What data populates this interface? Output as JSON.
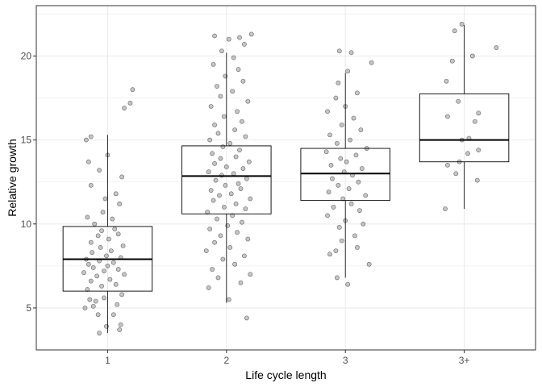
{
  "chart_data": {
    "type": "boxplot",
    "xlabel": "Life cycle length",
    "ylabel": "Relative growth",
    "categories": [
      "1",
      "2",
      "3",
      "3+"
    ],
    "ylim": [
      2.5,
      23.0
    ],
    "yticks": [
      5,
      10,
      15,
      20
    ],
    "grid": true,
    "colors": {
      "point_fill": "#7f7f7f",
      "point_stroke": "#333333",
      "box": "#000000",
      "panel_border": "#333333",
      "grid": "#ebebeb"
    },
    "boxes": [
      {
        "category": "1",
        "whisker_low": 3.5,
        "q1": 6.0,
        "median": 7.9,
        "q3": 9.85,
        "whisker_high": 15.3
      },
      {
        "category": "2",
        "whisker_low": 5.3,
        "q1": 10.6,
        "median": 12.85,
        "q3": 14.65,
        "whisker_high": 20.2
      },
      {
        "category": "3",
        "whisker_low": 6.8,
        "q1": 11.4,
        "median": 13.0,
        "q3": 14.5,
        "whisker_high": 19.0
      },
      {
        "category": "3+",
        "whisker_low": 10.9,
        "q1": 13.7,
        "median": 15.0,
        "q3": 17.75,
        "whisker_high": 21.85
      }
    ],
    "points": [
      {
        "category": "1",
        "x": 0.93,
        "y": 3.5
      },
      {
        "category": "1",
        "x": 1.1,
        "y": 3.7
      },
      {
        "category": "1",
        "x": 0.99,
        "y": 3.9
      },
      {
        "category": "1",
        "x": 1.11,
        "y": 4.0
      },
      {
        "category": "1",
        "x": 0.92,
        "y": 4.6
      },
      {
        "category": "1",
        "x": 1.05,
        "y": 4.6
      },
      {
        "category": "1",
        "x": 0.81,
        "y": 5.0
      },
      {
        "category": "1",
        "x": 0.88,
        "y": 5.1
      },
      {
        "category": "1",
        "x": 1.08,
        "y": 5.2
      },
      {
        "category": "1",
        "x": 0.9,
        "y": 5.4
      },
      {
        "category": "1",
        "x": 0.85,
        "y": 5.5
      },
      {
        "category": "1",
        "x": 0.97,
        "y": 5.6
      },
      {
        "category": "1",
        "x": 1.12,
        "y": 5.8
      },
      {
        "category": "1",
        "x": 0.83,
        "y": 6.1
      },
      {
        "category": "1",
        "x": 0.95,
        "y": 6.3
      },
      {
        "category": "1",
        "x": 1.07,
        "y": 6.4
      },
      {
        "category": "1",
        "x": 0.86,
        "y": 6.6
      },
      {
        "category": "1",
        "x": 1.02,
        "y": 6.7
      },
      {
        "category": "1",
        "x": 0.91,
        "y": 6.9
      },
      {
        "category": "1",
        "x": 1.14,
        "y": 7.0
      },
      {
        "category": "1",
        "x": 0.8,
        "y": 7.1
      },
      {
        "category": "1",
        "x": 0.97,
        "y": 7.2
      },
      {
        "category": "1",
        "x": 1.09,
        "y": 7.3
      },
      {
        "category": "1",
        "x": 0.88,
        "y": 7.4
      },
      {
        "category": "1",
        "x": 1.0,
        "y": 7.5
      },
      {
        "category": "1",
        "x": 0.84,
        "y": 7.6
      },
      {
        "category": "1",
        "x": 1.05,
        "y": 7.7
      },
      {
        "category": "1",
        "x": 0.93,
        "y": 7.8
      },
      {
        "category": "1",
        "x": 0.82,
        "y": 7.9
      },
      {
        "category": "1",
        "x": 1.11,
        "y": 8.0
      },
      {
        "category": "1",
        "x": 0.99,
        "y": 8.1
      },
      {
        "category": "1",
        "x": 0.87,
        "y": 8.3
      },
      {
        "category": "1",
        "x": 1.03,
        "y": 8.4
      },
      {
        "category": "1",
        "x": 0.94,
        "y": 8.6
      },
      {
        "category": "1",
        "x": 1.13,
        "y": 8.7
      },
      {
        "category": "1",
        "x": 0.86,
        "y": 8.9
      },
      {
        "category": "1",
        "x": 1.01,
        "y": 9.1
      },
      {
        "category": "1",
        "x": 0.92,
        "y": 9.3
      },
      {
        "category": "1",
        "x": 1.09,
        "y": 9.4
      },
      {
        "category": "1",
        "x": 0.95,
        "y": 9.6
      },
      {
        "category": "1",
        "x": 1.06,
        "y": 9.7
      },
      {
        "category": "1",
        "x": 0.89,
        "y": 10.0
      },
      {
        "category": "1",
        "x": 1.04,
        "y": 10.3
      },
      {
        "category": "1",
        "x": 0.96,
        "y": 10.7
      },
      {
        "category": "1",
        "x": 0.83,
        "y": 10.4
      },
      {
        "category": "1",
        "x": 1.1,
        "y": 11.2
      },
      {
        "category": "1",
        "x": 0.98,
        "y": 11.5
      },
      {
        "category": "1",
        "x": 1.07,
        "y": 11.8
      },
      {
        "category": "1",
        "x": 0.86,
        "y": 12.3
      },
      {
        "category": "1",
        "x": 1.12,
        "y": 12.8
      },
      {
        "category": "1",
        "x": 0.93,
        "y": 13.2
      },
      {
        "category": "1",
        "x": 0.84,
        "y": 13.7
      },
      {
        "category": "1",
        "x": 1.0,
        "y": 14.1
      },
      {
        "category": "1",
        "x": 0.82,
        "y": 15.0
      },
      {
        "category": "1",
        "x": 0.86,
        "y": 15.2
      },
      {
        "category": "1",
        "x": 1.14,
        "y": 16.9
      },
      {
        "category": "1",
        "x": 1.19,
        "y": 17.2
      },
      {
        "category": "1",
        "x": 1.21,
        "y": 18.0
      },
      {
        "category": "2",
        "x": 2.17,
        "y": 4.4
      },
      {
        "category": "2",
        "x": 2.02,
        "y": 5.5
      },
      {
        "category": "2",
        "x": 1.85,
        "y": 6.2
      },
      {
        "category": "2",
        "x": 2.12,
        "y": 6.5
      },
      {
        "category": "2",
        "x": 1.93,
        "y": 6.8
      },
      {
        "category": "2",
        "x": 2.2,
        "y": 7.0
      },
      {
        "category": "2",
        "x": 1.88,
        "y": 7.3
      },
      {
        "category": "2",
        "x": 2.07,
        "y": 7.6
      },
      {
        "category": "2",
        "x": 1.97,
        "y": 7.9
      },
      {
        "category": "2",
        "x": 2.15,
        "y": 8.1
      },
      {
        "category": "2",
        "x": 1.83,
        "y": 8.4
      },
      {
        "category": "2",
        "x": 2.03,
        "y": 8.6
      },
      {
        "category": "2",
        "x": 1.9,
        "y": 8.9
      },
      {
        "category": "2",
        "x": 2.18,
        "y": 9.1
      },
      {
        "category": "2",
        "x": 1.95,
        "y": 9.3
      },
      {
        "category": "2",
        "x": 2.09,
        "y": 9.5
      },
      {
        "category": "2",
        "x": 1.86,
        "y": 9.7
      },
      {
        "category": "2",
        "x": 2.01,
        "y": 9.9
      },
      {
        "category": "2",
        "x": 2.13,
        "y": 10.1
      },
      {
        "category": "2",
        "x": 1.92,
        "y": 10.3
      },
      {
        "category": "2",
        "x": 2.05,
        "y": 10.5
      },
      {
        "category": "2",
        "x": 1.84,
        "y": 10.7
      },
      {
        "category": "2",
        "x": 2.16,
        "y": 10.9
      },
      {
        "category": "2",
        "x": 1.98,
        "y": 11.0
      },
      {
        "category": "2",
        "x": 2.08,
        "y": 11.2
      },
      {
        "category": "2",
        "x": 1.89,
        "y": 11.4
      },
      {
        "category": "2",
        "x": 2.2,
        "y": 11.5
      },
      {
        "category": "2",
        "x": 1.94,
        "y": 11.7
      },
      {
        "category": "2",
        "x": 2.04,
        "y": 11.8
      },
      {
        "category": "2",
        "x": 1.87,
        "y": 12.0
      },
      {
        "category": "2",
        "x": 2.12,
        "y": 12.1
      },
      {
        "category": "2",
        "x": 1.99,
        "y": 12.3
      },
      {
        "category": "2",
        "x": 2.1,
        "y": 12.4
      },
      {
        "category": "2",
        "x": 1.91,
        "y": 12.6
      },
      {
        "category": "2",
        "x": 2.17,
        "y": 12.7
      },
      {
        "category": "2",
        "x": 1.96,
        "y": 12.9
      },
      {
        "category": "2",
        "x": 2.06,
        "y": 13.0
      },
      {
        "category": "2",
        "x": 1.85,
        "y": 13.1
      },
      {
        "category": "2",
        "x": 2.14,
        "y": 13.3
      },
      {
        "category": "2",
        "x": 2.0,
        "y": 13.4
      },
      {
        "category": "2",
        "x": 1.9,
        "y": 13.6
      },
      {
        "category": "2",
        "x": 2.19,
        "y": 13.7
      },
      {
        "category": "2",
        "x": 1.95,
        "y": 13.9
      },
      {
        "category": "2",
        "x": 2.08,
        "y": 14.0
      },
      {
        "category": "2",
        "x": 1.88,
        "y": 14.2
      },
      {
        "category": "2",
        "x": 2.11,
        "y": 14.4
      },
      {
        "category": "2",
        "x": 1.97,
        "y": 14.6
      },
      {
        "category": "2",
        "x": 2.03,
        "y": 14.8
      },
      {
        "category": "2",
        "x": 1.86,
        "y": 15.0
      },
      {
        "category": "2",
        "x": 2.16,
        "y": 15.2
      },
      {
        "category": "2",
        "x": 1.93,
        "y": 15.4
      },
      {
        "category": "2",
        "x": 2.07,
        "y": 15.6
      },
      {
        "category": "2",
        "x": 1.9,
        "y": 15.9
      },
      {
        "category": "2",
        "x": 2.13,
        "y": 16.1
      },
      {
        "category": "2",
        "x": 1.98,
        "y": 16.4
      },
      {
        "category": "2",
        "x": 2.09,
        "y": 16.7
      },
      {
        "category": "2",
        "x": 1.87,
        "y": 17.0
      },
      {
        "category": "2",
        "x": 2.18,
        "y": 17.3
      },
      {
        "category": "2",
        "x": 1.95,
        "y": 17.6
      },
      {
        "category": "2",
        "x": 2.05,
        "y": 17.9
      },
      {
        "category": "2",
        "x": 1.92,
        "y": 18.2
      },
      {
        "category": "2",
        "x": 2.14,
        "y": 18.5
      },
      {
        "category": "2",
        "x": 1.99,
        "y": 18.8
      },
      {
        "category": "2",
        "x": 2.1,
        "y": 19.2
      },
      {
        "category": "2",
        "x": 1.89,
        "y": 19.5
      },
      {
        "category": "2",
        "x": 2.06,
        "y": 19.9
      },
      {
        "category": "2",
        "x": 1.96,
        "y": 20.3
      },
      {
        "category": "2",
        "x": 2.15,
        "y": 20.7
      },
      {
        "category": "2",
        "x": 2.02,
        "y": 21.0
      },
      {
        "category": "2",
        "x": 1.9,
        "y": 21.2
      },
      {
        "category": "2",
        "x": 2.11,
        "y": 21.1
      },
      {
        "category": "2",
        "x": 2.21,
        "y": 21.3
      },
      {
        "category": "3",
        "x": 2.93,
        "y": 6.8
      },
      {
        "category": "3",
        "x": 3.02,
        "y": 6.4
      },
      {
        "category": "3",
        "x": 3.2,
        "y": 7.6
      },
      {
        "category": "3",
        "x": 2.87,
        "y": 8.2
      },
      {
        "category": "3",
        "x": 2.92,
        "y": 8.4
      },
      {
        "category": "3",
        "x": 3.1,
        "y": 8.6
      },
      {
        "category": "3",
        "x": 2.97,
        "y": 9.0
      },
      {
        "category": "3",
        "x": 3.08,
        "y": 9.3
      },
      {
        "category": "3",
        "x": 2.95,
        "y": 9.8
      },
      {
        "category": "3",
        "x": 3.15,
        "y": 10.0
      },
      {
        "category": "3",
        "x": 3.0,
        "y": 10.2
      },
      {
        "category": "3",
        "x": 2.85,
        "y": 10.5
      },
      {
        "category": "3",
        "x": 3.12,
        "y": 10.8
      },
      {
        "category": "3",
        "x": 2.9,
        "y": 11.0
      },
      {
        "category": "3",
        "x": 3.05,
        "y": 11.2
      },
      {
        "category": "3",
        "x": 2.98,
        "y": 11.5
      },
      {
        "category": "3",
        "x": 3.17,
        "y": 11.7
      },
      {
        "category": "3",
        "x": 2.86,
        "y": 11.9
      },
      {
        "category": "3",
        "x": 3.03,
        "y": 12.1
      },
      {
        "category": "3",
        "x": 2.94,
        "y": 12.3
      },
      {
        "category": "3",
        "x": 3.11,
        "y": 12.5
      },
      {
        "category": "3",
        "x": 2.89,
        "y": 12.7
      },
      {
        "category": "3",
        "x": 3.06,
        "y": 12.9
      },
      {
        "category": "3",
        "x": 2.99,
        "y": 13.1
      },
      {
        "category": "3",
        "x": 3.14,
        "y": 13.3
      },
      {
        "category": "3",
        "x": 2.88,
        "y": 13.5
      },
      {
        "category": "3",
        "x": 3.01,
        "y": 13.7
      },
      {
        "category": "3",
        "x": 2.96,
        "y": 13.9
      },
      {
        "category": "3",
        "x": 3.09,
        "y": 14.1
      },
      {
        "category": "3",
        "x": 2.84,
        "y": 14.3
      },
      {
        "category": "3",
        "x": 3.18,
        "y": 14.5
      },
      {
        "category": "3",
        "x": 2.93,
        "y": 14.8
      },
      {
        "category": "3",
        "x": 3.04,
        "y": 15.0
      },
      {
        "category": "3",
        "x": 2.87,
        "y": 15.3
      },
      {
        "category": "3",
        "x": 3.13,
        "y": 15.6
      },
      {
        "category": "3",
        "x": 2.97,
        "y": 15.9
      },
      {
        "category": "3",
        "x": 3.07,
        "y": 16.3
      },
      {
        "category": "3",
        "x": 2.85,
        "y": 16.7
      },
      {
        "category": "3",
        "x": 3.0,
        "y": 17.0
      },
      {
        "category": "3",
        "x": 2.92,
        "y": 17.5
      },
      {
        "category": "3",
        "x": 3.1,
        "y": 17.8
      },
      {
        "category": "3",
        "x": 2.94,
        "y": 18.4
      },
      {
        "category": "3",
        "x": 3.02,
        "y": 19.1
      },
      {
        "category": "3",
        "x": 3.05,
        "y": 20.2
      },
      {
        "category": "3",
        "x": 2.95,
        "y": 20.3
      },
      {
        "category": "3",
        "x": 3.22,
        "y": 19.6
      },
      {
        "category": "3+",
        "x": 3.84,
        "y": 10.9
      },
      {
        "category": "3+",
        "x": 4.11,
        "y": 12.6
      },
      {
        "category": "3+",
        "x": 3.93,
        "y": 13.0
      },
      {
        "category": "3+",
        "x": 3.86,
        "y": 13.5
      },
      {
        "category": "3+",
        "x": 3.96,
        "y": 13.7
      },
      {
        "category": "3+",
        "x": 4.12,
        "y": 14.4
      },
      {
        "category": "3+",
        "x": 4.03,
        "y": 14.2
      },
      {
        "category": "3+",
        "x": 3.98,
        "y": 15.0
      },
      {
        "category": "3+",
        "x": 4.04,
        "y": 15.1
      },
      {
        "category": "3+",
        "x": 4.09,
        "y": 16.1
      },
      {
        "category": "3+",
        "x": 3.86,
        "y": 16.4
      },
      {
        "category": "3+",
        "x": 4.12,
        "y": 16.6
      },
      {
        "category": "3+",
        "x": 3.95,
        "y": 17.3
      },
      {
        "category": "3+",
        "x": 3.85,
        "y": 18.5
      },
      {
        "category": "3+",
        "x": 3.9,
        "y": 19.7
      },
      {
        "category": "3+",
        "x": 4.07,
        "y": 20.0
      },
      {
        "category": "3+",
        "x": 4.27,
        "y": 20.5
      },
      {
        "category": "3+",
        "x": 3.92,
        "y": 21.5
      },
      {
        "category": "3+",
        "x": 3.98,
        "y": 21.9
      }
    ]
  }
}
